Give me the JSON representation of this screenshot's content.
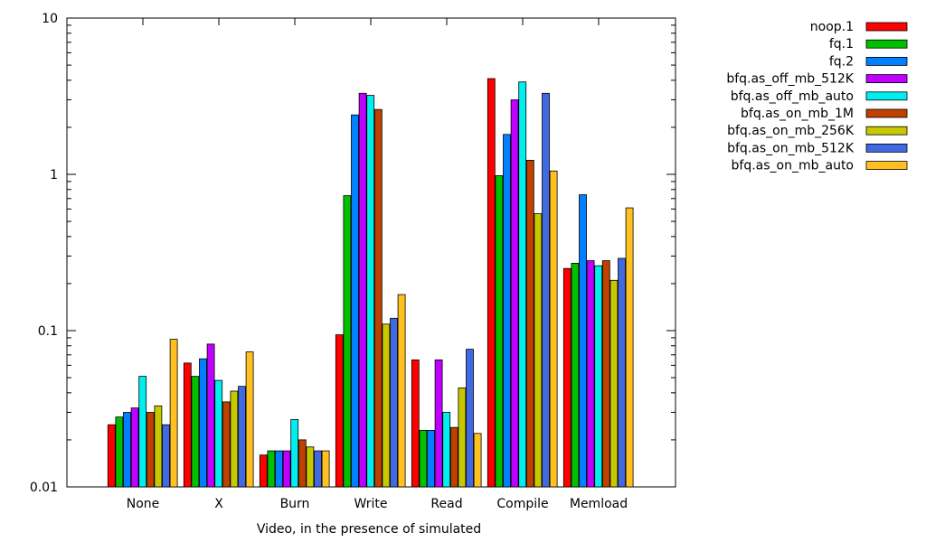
{
  "chart_data": {
    "type": "bar",
    "title": "",
    "xlabel": "Video, in the presence of simulated",
    "ylabel": "",
    "yscale": "log",
    "ylim": [
      0.01,
      10
    ],
    "y_ticks": [
      {
        "value": 0.01,
        "label": "0.01"
      },
      {
        "value": 0.1,
        "label": "0.1"
      },
      {
        "value": 1,
        "label": "1"
      },
      {
        "value": 10,
        "label": "10"
      }
    ],
    "grid": false,
    "legend_position": "top-right",
    "categories": [
      "None",
      "X",
      "Burn",
      "Write",
      "Read",
      "Compile",
      "Memload"
    ],
    "series": [
      {
        "name": "noop.1",
        "color": "#ff0000",
        "values": [
          0.025,
          0.062,
          0.016,
          0.094,
          0.065,
          4.1,
          0.25
        ]
      },
      {
        "name": "fq.1",
        "color": "#00c000",
        "values": [
          0.028,
          0.051,
          0.017,
          0.73,
          0.023,
          0.98,
          0.27
        ]
      },
      {
        "name": "fq.2",
        "color": "#0080ff",
        "values": [
          0.03,
          0.066,
          0.017,
          2.4,
          0.023,
          1.8,
          0.74
        ]
      },
      {
        "name": "bfq.as_off_mb_512K",
        "color": "#c000ff",
        "values": [
          0.032,
          0.082,
          0.017,
          3.3,
          0.065,
          3.0,
          0.28
        ]
      },
      {
        "name": "bfq.as_off_mb_auto",
        "color": "#00eeee",
        "values": [
          0.051,
          0.048,
          0.027,
          3.2,
          0.03,
          3.9,
          0.26
        ]
      },
      {
        "name": "bfq.as_on_mb_1M",
        "color": "#c04000",
        "values": [
          0.03,
          0.035,
          0.02,
          2.6,
          0.024,
          1.23,
          0.28
        ]
      },
      {
        "name": "bfq.as_on_mb_256K",
        "color": "#c8c800",
        "values": [
          0.033,
          0.041,
          0.018,
          0.11,
          0.043,
          0.56,
          0.21
        ]
      },
      {
        "name": "bfq.as_on_mb_512K",
        "color": "#4169e1",
        "values": [
          0.025,
          0.044,
          0.017,
          0.12,
          0.076,
          3.3,
          0.29
        ]
      },
      {
        "name": "bfq.as_on_mb_auto",
        "color": "#ffc020",
        "values": [
          0.088,
          0.073,
          0.017,
          0.17,
          0.022,
          1.05,
          0.61
        ]
      }
    ]
  }
}
